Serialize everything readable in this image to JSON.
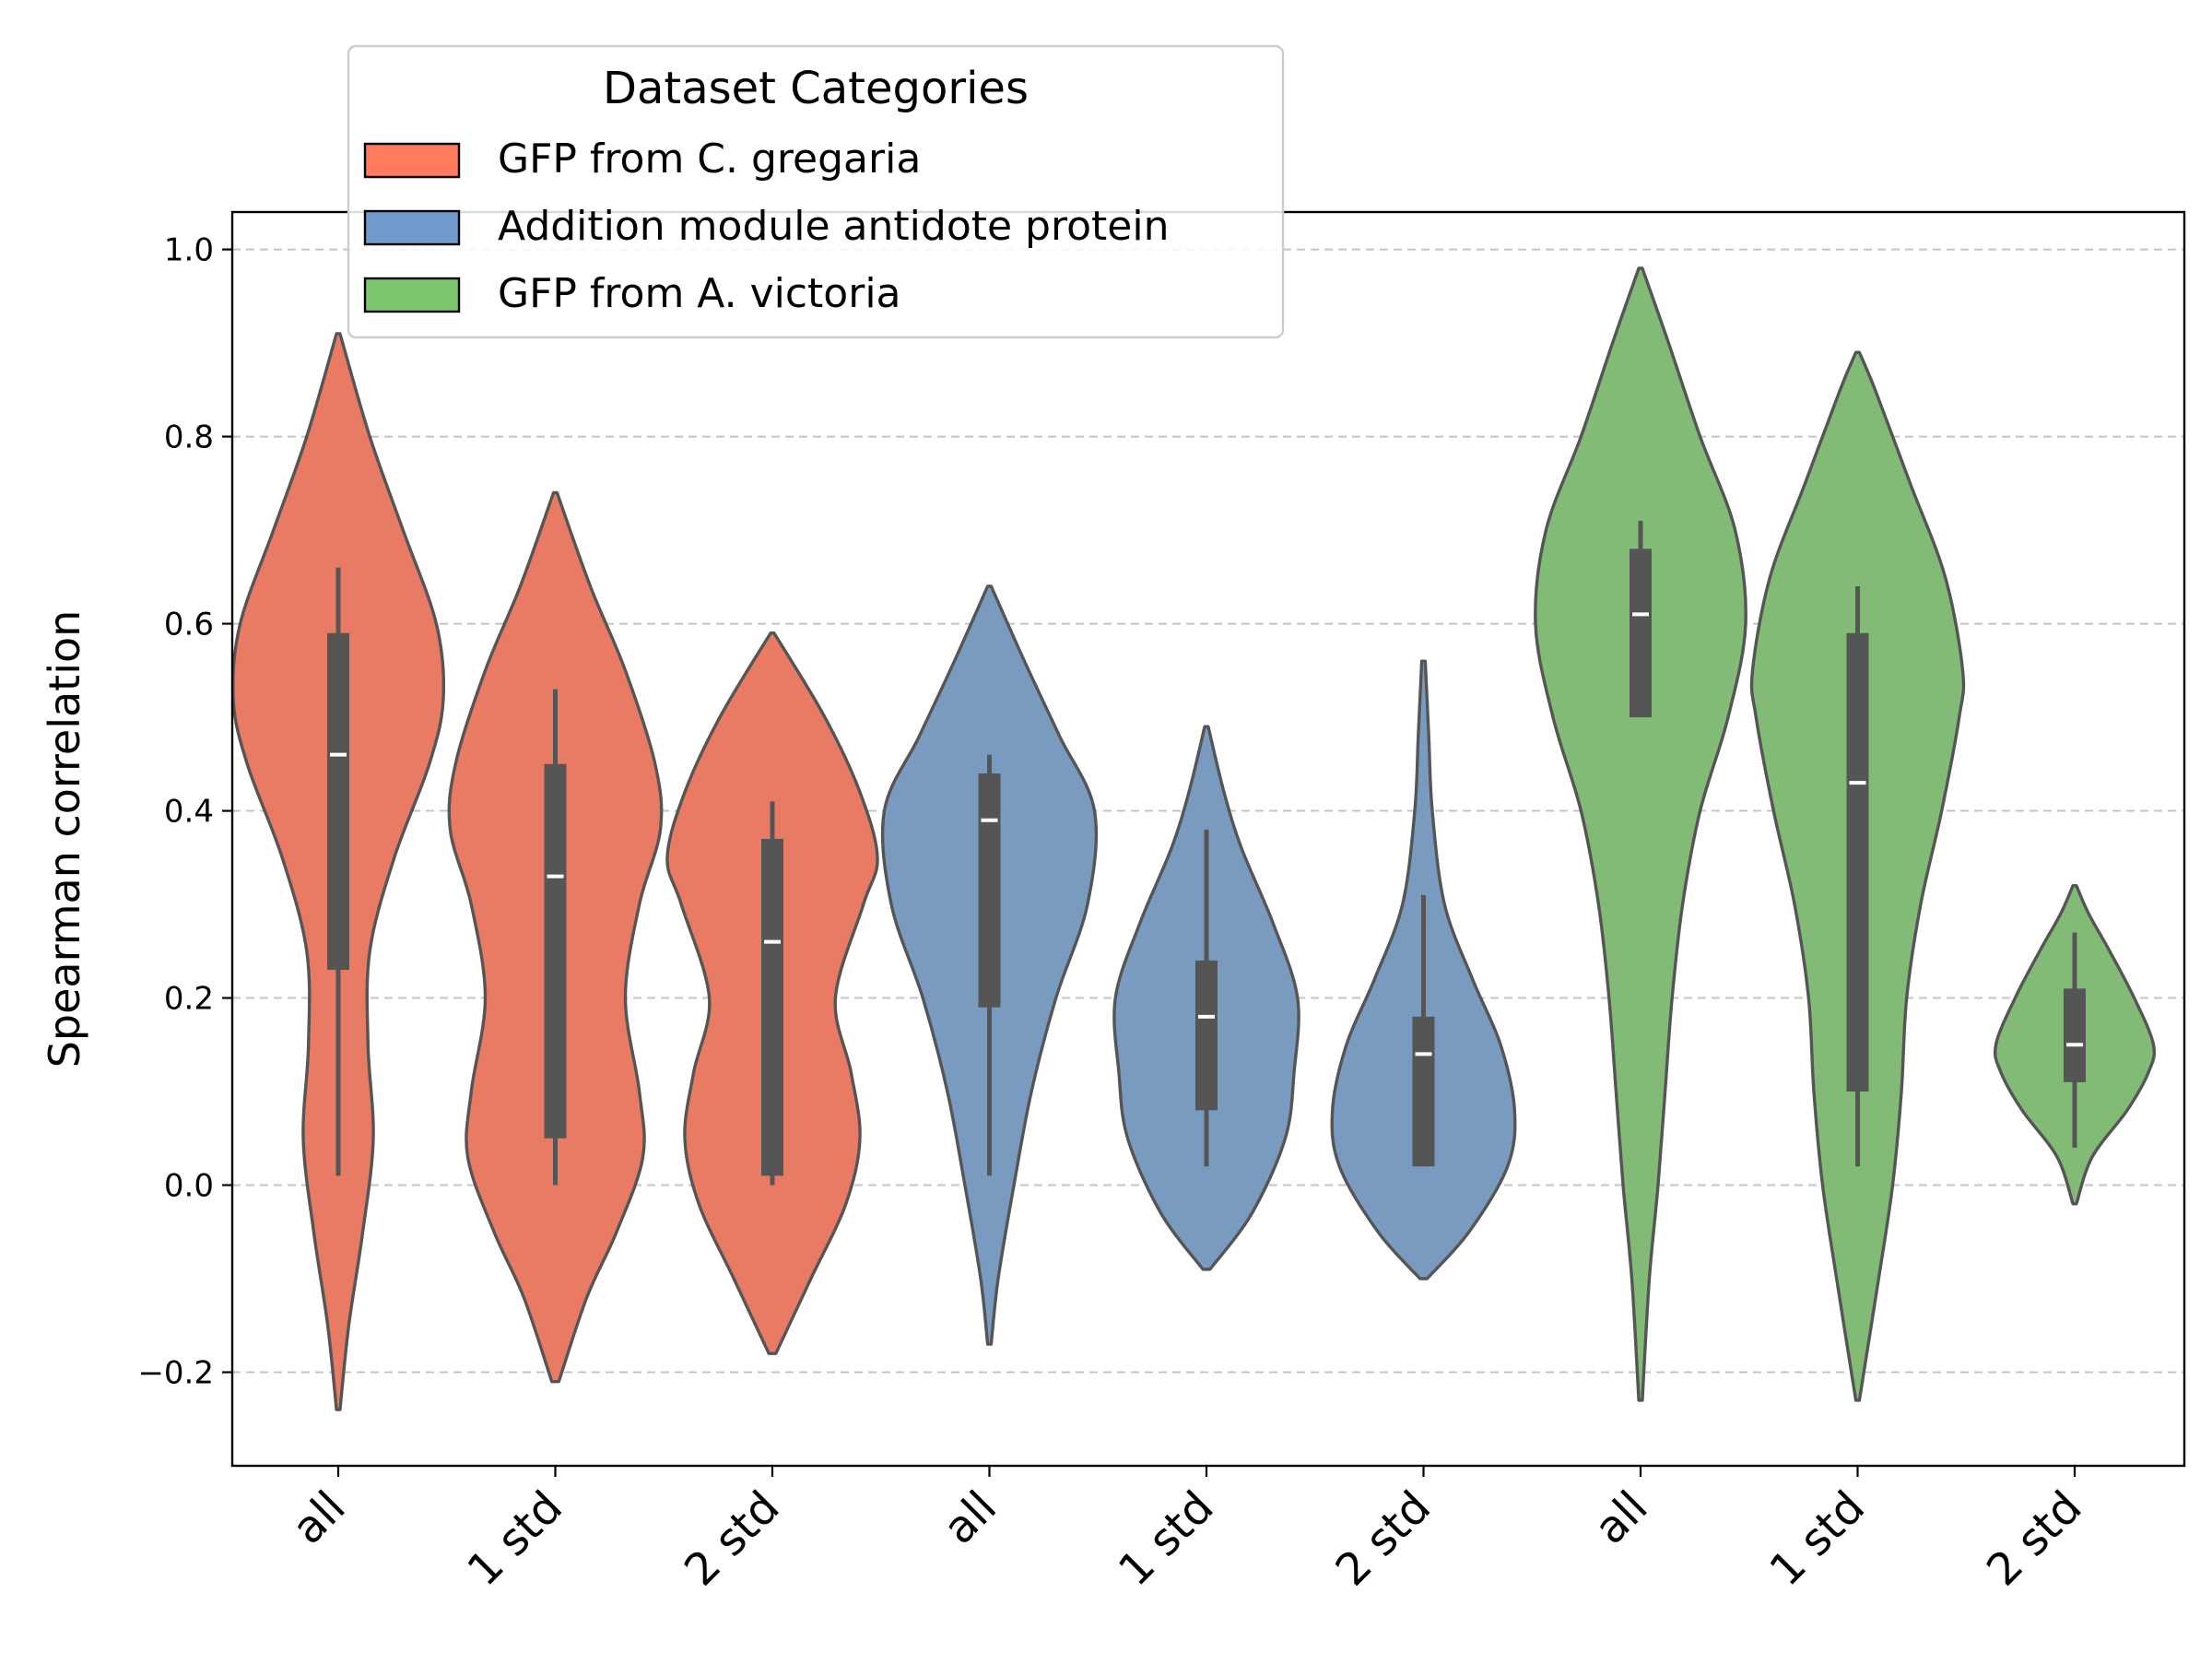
{
  "chart_data": {
    "type": "violin",
    "title": "",
    "xlabel": "",
    "ylabel": "Spearman correlation",
    "ylim": [
      -0.3,
      1.04
    ],
    "yticks": [
      -0.2,
      0.0,
      0.2,
      0.4,
      0.6,
      0.8,
      1.0
    ],
    "ytick_labels": [
      "−0.2",
      "0.0",
      "0.2",
      "0.4",
      "0.6",
      "0.8",
      "1.0"
    ],
    "grid": "horizontal dashed",
    "legend": {
      "title": "Dataset Categories",
      "placement": "upper-left",
      "entries": [
        {
          "label": "GFP from C. gregaria",
          "color": "#FF7B5C"
        },
        {
          "label": "Addition module antidote protein",
          "color": "#6F9BCC"
        },
        {
          "label": "GFP from A. victoria",
          "color": "#7CC66E"
        }
      ]
    },
    "violin_colors": [
      "#E97B65",
      "#7A9BC0",
      "#82BB76"
    ],
    "outline_color": "#555555",
    "categories": [
      "all",
      "1 std",
      "2 std",
      "all",
      "1 std",
      "2 std",
      "all",
      "1 std",
      "2 std"
    ],
    "violins": [
      {
        "label": "all",
        "group": 0,
        "min": -0.24,
        "max": 0.91,
        "q1": 0.23,
        "median": 0.46,
        "q3": 0.59,
        "whisker_low": 0.01,
        "whisker_high": 0.66,
        "density": [
          [
            -0.24,
            0.01
          ],
          [
            -0.15,
            0.06
          ],
          [
            -0.05,
            0.14
          ],
          [
            0.05,
            0.2
          ],
          [
            0.15,
            0.17
          ],
          [
            0.25,
            0.18
          ],
          [
            0.35,
            0.32
          ],
          [
            0.45,
            0.52
          ],
          [
            0.52,
            0.6
          ],
          [
            0.6,
            0.56
          ],
          [
            0.7,
            0.37
          ],
          [
            0.8,
            0.18
          ],
          [
            0.91,
            0.01
          ]
        ]
      },
      {
        "label": "1 std",
        "group": 0,
        "min": -0.21,
        "max": 0.74,
        "q1": 0.05,
        "median": 0.33,
        "q3": 0.45,
        "whisker_low": 0.0,
        "whisker_high": 0.53,
        "density": [
          [
            -0.21,
            0.02
          ],
          [
            -0.12,
            0.18
          ],
          [
            -0.05,
            0.35
          ],
          [
            0.03,
            0.5
          ],
          [
            0.1,
            0.48
          ],
          [
            0.2,
            0.4
          ],
          [
            0.3,
            0.48
          ],
          [
            0.38,
            0.6
          ],
          [
            0.45,
            0.57
          ],
          [
            0.55,
            0.4
          ],
          [
            0.64,
            0.2
          ],
          [
            0.74,
            0.01
          ]
        ]
      },
      {
        "label": "2 std",
        "group": 0,
        "min": -0.18,
        "max": 0.59,
        "q1": 0.01,
        "median": 0.26,
        "q3": 0.37,
        "whisker_low": 0.0,
        "whisker_high": 0.41,
        "density": [
          [
            -0.18,
            0.02
          ],
          [
            -0.1,
            0.22
          ],
          [
            -0.02,
            0.42
          ],
          [
            0.05,
            0.5
          ],
          [
            0.12,
            0.45
          ],
          [
            0.2,
            0.36
          ],
          [
            0.3,
            0.52
          ],
          [
            0.35,
            0.6
          ],
          [
            0.42,
            0.5
          ],
          [
            0.5,
            0.3
          ],
          [
            0.59,
            0.01
          ]
        ]
      },
      {
        "label": "all",
        "group": 1,
        "min": -0.17,
        "max": 0.64,
        "q1": 0.19,
        "median": 0.39,
        "q3": 0.44,
        "whisker_low": 0.01,
        "whisker_high": 0.46,
        "density": [
          [
            -0.17,
            0.01
          ],
          [
            -0.1,
            0.05
          ],
          [
            0.0,
            0.14
          ],
          [
            0.1,
            0.24
          ],
          [
            0.2,
            0.38
          ],
          [
            0.3,
            0.56
          ],
          [
            0.4,
            0.6
          ],
          [
            0.48,
            0.4
          ],
          [
            0.56,
            0.2
          ],
          [
            0.64,
            0.01
          ]
        ]
      },
      {
        "label": "1 std",
        "group": 1,
        "min": -0.09,
        "max": 0.49,
        "q1": 0.08,
        "median": 0.18,
        "q3": 0.24,
        "whisker_low": 0.02,
        "whisker_high": 0.38,
        "density": [
          [
            -0.09,
            0.02
          ],
          [
            -0.03,
            0.26
          ],
          [
            0.05,
            0.45
          ],
          [
            0.12,
            0.5
          ],
          [
            0.2,
            0.52
          ],
          [
            0.28,
            0.38
          ],
          [
            0.36,
            0.2
          ],
          [
            0.42,
            0.1
          ],
          [
            0.49,
            0.01
          ]
        ]
      },
      {
        "label": "2 std",
        "group": 1,
        "min": -0.1,
        "max": 0.56,
        "q1": 0.02,
        "median": 0.14,
        "q3": 0.18,
        "whisker_low": 0.02,
        "whisker_high": 0.31,
        "density": [
          [
            -0.1,
            0.02
          ],
          [
            -0.05,
            0.26
          ],
          [
            0.02,
            0.48
          ],
          [
            0.08,
            0.52
          ],
          [
            0.15,
            0.44
          ],
          [
            0.22,
            0.28
          ],
          [
            0.3,
            0.12
          ],
          [
            0.4,
            0.05
          ],
          [
            0.48,
            0.03
          ],
          [
            0.56,
            0.01
          ]
        ]
      },
      {
        "label": "all",
        "group": 2,
        "min": -0.23,
        "max": 0.98,
        "q1": 0.5,
        "median": 0.61,
        "q3": 0.68,
        "whisker_low": 0.5,
        "whisker_high": 0.71,
        "density": [
          [
            -0.23,
            0.01
          ],
          [
            -0.1,
            0.05
          ],
          [
            0.0,
            0.1
          ],
          [
            0.1,
            0.14
          ],
          [
            0.2,
            0.18
          ],
          [
            0.3,
            0.24
          ],
          [
            0.4,
            0.34
          ],
          [
            0.5,
            0.5
          ],
          [
            0.6,
            0.6
          ],
          [
            0.7,
            0.54
          ],
          [
            0.8,
            0.34
          ],
          [
            0.9,
            0.16
          ],
          [
            0.98,
            0.01
          ]
        ]
      },
      {
        "label": "1 std",
        "group": 2,
        "min": -0.23,
        "max": 0.89,
        "q1": 0.1,
        "median": 0.43,
        "q3": 0.59,
        "whisker_low": 0.02,
        "whisker_high": 0.64,
        "density": [
          [
            -0.23,
            0.01
          ],
          [
            -0.1,
            0.12
          ],
          [
            0.0,
            0.2
          ],
          [
            0.1,
            0.25
          ],
          [
            0.2,
            0.28
          ],
          [
            0.3,
            0.36
          ],
          [
            0.4,
            0.48
          ],
          [
            0.5,
            0.58
          ],
          [
            0.55,
            0.6
          ],
          [
            0.65,
            0.5
          ],
          [
            0.75,
            0.3
          ],
          [
            0.85,
            0.1
          ],
          [
            0.89,
            0.01
          ]
        ]
      },
      {
        "label": "2 std",
        "group": 2,
        "min": -0.02,
        "max": 0.32,
        "q1": 0.11,
        "median": 0.15,
        "q3": 0.21,
        "whisker_low": 0.04,
        "whisker_high": 0.27,
        "density": [
          [
            -0.02,
            0.01
          ],
          [
            0.03,
            0.1
          ],
          [
            0.08,
            0.3
          ],
          [
            0.12,
            0.42
          ],
          [
            0.15,
            0.45
          ],
          [
            0.2,
            0.34
          ],
          [
            0.25,
            0.2
          ],
          [
            0.29,
            0.08
          ],
          [
            0.32,
            0.01
          ]
        ]
      }
    ]
  }
}
